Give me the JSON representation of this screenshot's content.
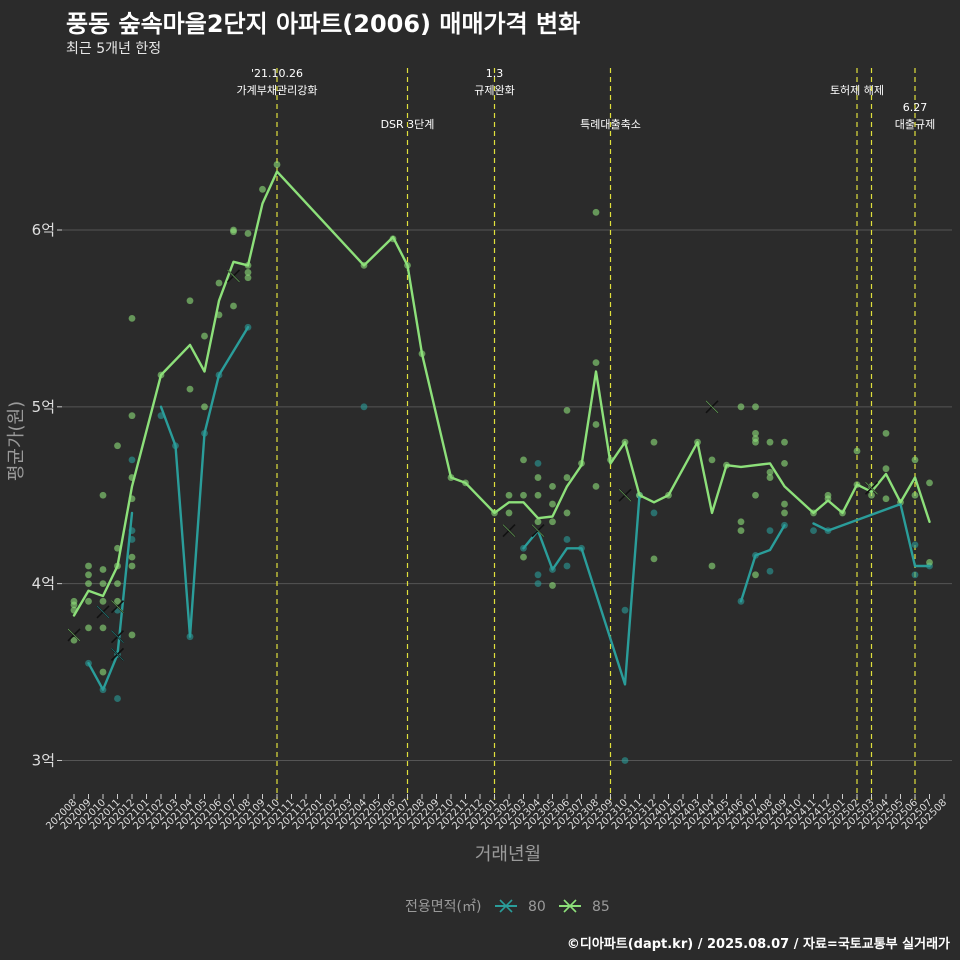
{
  "header": {
    "title": "풍동 숲속마을2단지 아파트(2006) 매매가격 변화",
    "subtitle": "최근 5개년 한정"
  },
  "caption": "©디아파트(dapt.kr) / 2025.08.07 / 자료=국토교통부 실거래가",
  "colors": {
    "background": "#2b2b2b",
    "grid": "#555555",
    "event_line": "#e0e03c",
    "series_80": "#2a9d9a",
    "series_85": "#8de07a"
  },
  "chart_data": {
    "type": "line",
    "xlabel": "거래년월",
    "ylabel": "평균가(원)",
    "ylim": [
      2.85,
      6.95
    ],
    "yticks": [
      {
        "value": 3,
        "label": "3억"
      },
      {
        "value": 4,
        "label": "4억"
      },
      {
        "value": 5,
        "label": "5억"
      },
      {
        "value": 6,
        "label": "6억"
      }
    ],
    "categories": [
      "202008",
      "202009",
      "202010",
      "202011",
      "202012",
      "202101",
      "202102",
      "202103",
      "202104",
      "202105",
      "202106",
      "202107",
      "202108",
      "202109",
      "202110",
      "202111",
      "202112",
      "202201",
      "202202",
      "202203",
      "202204",
      "202205",
      "202206",
      "202207",
      "202208",
      "202209",
      "202210",
      "202211",
      "202212",
      "202301",
      "202302",
      "202303",
      "202304",
      "202305",
      "202306",
      "202307",
      "202308",
      "202309",
      "202310",
      "202311",
      "202312",
      "202401",
      "202402",
      "202403",
      "202404",
      "202405",
      "202406",
      "202407",
      "202408",
      "202409",
      "202410",
      "202411",
      "202412",
      "202501",
      "202502",
      "202503",
      "202504",
      "202505",
      "202506",
      "202507",
      "202508"
    ],
    "legend_title": "전용면적(㎡)",
    "series": [
      {
        "name": "80",
        "segments": [
          [
            [
              "202009",
              3.55
            ],
            [
              "202010",
              3.4
            ],
            [
              "202011",
              3.6
            ],
            [
              "202012",
              4.4
            ]
          ],
          [
            [
              "202102",
              5.0
            ],
            [
              "202103",
              4.78
            ],
            [
              "202104",
              3.7
            ],
            [
              "202105",
              4.85
            ],
            [
              "202106",
              5.18
            ],
            [
              "202108",
              5.45
            ]
          ],
          [
            [
              "202303",
              4.2
            ],
            [
              "202304",
              4.3
            ],
            [
              "202305",
              4.08
            ],
            [
              "202306",
              4.2
            ],
            [
              "202307",
              4.2
            ],
            [
              "202310",
              3.43
            ],
            [
              "202311",
              4.5
            ]
          ],
          [
            [
              "202406",
              3.9
            ],
            [
              "202407",
              4.16
            ],
            [
              "202408",
              4.19
            ],
            [
              "202409",
              4.33
            ]
          ],
          [
            [
              "202411",
              4.34
            ],
            [
              "202412",
              4.3
            ],
            [
              "202505",
              4.45
            ],
            [
              "202506",
              4.1
            ],
            [
              "202507",
              4.1
            ]
          ]
        ],
        "points": [
          [
            "202009",
            3.55
          ],
          [
            "202010",
            3.4
          ],
          [
            "202011",
            3.35
          ],
          [
            "202011",
            3.6
          ],
          [
            "202011",
            3.85
          ],
          [
            "202012",
            4.3
          ],
          [
            "202012",
            4.25
          ],
          [
            "202012",
            4.7
          ],
          [
            "202102",
            4.95
          ],
          [
            "202103",
            4.78
          ],
          [
            "202104",
            3.7
          ],
          [
            "202105",
            4.85
          ],
          [
            "202106",
            5.18
          ],
          [
            "202108",
            5.45
          ],
          [
            "202204",
            5.0
          ],
          [
            "202303",
            4.2
          ],
          [
            "202304",
            4.68
          ],
          [
            "202304",
            4.05
          ],
          [
            "202304",
            4.0
          ],
          [
            "202305",
            4.08
          ],
          [
            "202306",
            4.25
          ],
          [
            "202306",
            4.1
          ],
          [
            "202307",
            4.2
          ],
          [
            "202310",
            3.85
          ],
          [
            "202310",
            3.0
          ],
          [
            "202311",
            4.5
          ],
          [
            "202312",
            4.4
          ],
          [
            "202406",
            3.9
          ],
          [
            "202407",
            4.16
          ],
          [
            "202408",
            4.07
          ],
          [
            "202408",
            4.3
          ],
          [
            "202409",
            4.33
          ],
          [
            "202411",
            4.3
          ],
          [
            "202412",
            4.3
          ],
          [
            "202506",
            4.05
          ],
          [
            "202506",
            4.22
          ],
          [
            "202507",
            4.1
          ]
        ],
        "markers_x": [
          [
            "202010",
            3.84
          ],
          [
            "202011",
            3.7
          ],
          [
            "202011",
            3.6
          ]
        ]
      },
      {
        "name": "85",
        "segments": [
          [
            [
              "202008",
              3.82
            ],
            [
              "202009",
              3.96
            ],
            [
              "202010",
              3.93
            ],
            [
              "202011",
              4.1
            ],
            [
              "202012",
              4.55
            ],
            [
              "202102",
              5.18
            ],
            [
              "202104",
              5.35
            ],
            [
              "202105",
              5.2
            ],
            [
              "202106",
              5.6
            ],
            [
              "202107",
              5.82
            ],
            [
              "202108",
              5.8
            ],
            [
              "202109",
              6.15
            ],
            [
              "202110",
              6.33
            ],
            [
              "202204",
              5.8
            ],
            [
              "202206",
              5.96
            ],
            [
              "202207",
              5.8
            ],
            [
              "202208",
              5.3
            ],
            [
              "202210",
              4.6
            ],
            [
              "202211",
              4.57
            ],
            [
              "202301",
              4.4
            ],
            [
              "202302",
              4.46
            ],
            [
              "202303",
              4.46
            ],
            [
              "202304",
              4.37
            ],
            [
              "202305",
              4.38
            ],
            [
              "202306",
              4.55
            ],
            [
              "202307",
              4.67
            ],
            [
              "202308",
              5.2
            ],
            [
              "202309",
              4.68
            ],
            [
              "202310",
              4.8
            ],
            [
              "202311",
              4.5
            ],
            [
              "202312",
              4.46
            ],
            [
              "202401",
              4.5
            ],
            [
              "202403",
              4.8
            ],
            [
              "202404",
              4.4
            ],
            [
              "202405",
              4.67
            ],
            [
              "202406",
              4.66
            ],
            [
              "202408",
              4.68
            ],
            [
              "202409",
              4.55
            ],
            [
              "202411",
              4.4
            ],
            [
              "202412",
              4.47
            ],
            [
              "202501",
              4.4
            ],
            [
              "202502",
              4.56
            ],
            [
              "202503",
              4.52
            ],
            [
              "202504",
              4.62
            ],
            [
              "202505",
              4.46
            ],
            [
              "202506",
              4.6
            ],
            [
              "202507",
              4.35
            ]
          ]
        ],
        "points": [
          [
            "202008",
            3.9
          ],
          [
            "202008",
            3.88
          ],
          [
            "202008",
            3.85
          ],
          [
            "202008",
            3.68
          ],
          [
            "202009",
            4.1
          ],
          [
            "202009",
            4.05
          ],
          [
            "202009",
            4.0
          ],
          [
            "202009",
            3.9
          ],
          [
            "202009",
            3.75
          ],
          [
            "202010",
            4.5
          ],
          [
            "202010",
            4.08
          ],
          [
            "202010",
            4.0
          ],
          [
            "202010",
            3.9
          ],
          [
            "202010",
            3.75
          ],
          [
            "202010",
            3.5
          ],
          [
            "202011",
            4.78
          ],
          [
            "202011",
            4.2
          ],
          [
            "202011",
            4.1
          ],
          [
            "202011",
            4.0
          ],
          [
            "202011",
            3.9
          ],
          [
            "202012",
            5.5
          ],
          [
            "202012",
            4.95
          ],
          [
            "202012",
            4.6
          ],
          [
            "202012",
            4.48
          ],
          [
            "202012",
            4.15
          ],
          [
            "202012",
            4.1
          ],
          [
            "202012",
            3.71
          ],
          [
            "202102",
            5.18
          ],
          [
            "202104",
            5.6
          ],
          [
            "202104",
            5.1
          ],
          [
            "202105",
            5.4
          ],
          [
            "202105",
            5.0
          ],
          [
            "202106",
            5.7
          ],
          [
            "202106",
            5.52
          ],
          [
            "202107",
            6.0
          ],
          [
            "202107",
            5.99
          ],
          [
            "202107",
            5.57
          ],
          [
            "202108",
            5.98
          ],
          [
            "202108",
            5.8
          ],
          [
            "202108",
            5.76
          ],
          [
            "202108",
            5.73
          ],
          [
            "202109",
            6.23
          ],
          [
            "202110",
            6.37
          ],
          [
            "202204",
            5.8
          ],
          [
            "202206",
            5.95
          ],
          [
            "202207",
            5.8
          ],
          [
            "202208",
            5.3
          ],
          [
            "202210",
            4.6
          ],
          [
            "202211",
            4.57
          ],
          [
            "202301",
            4.4
          ],
          [
            "202302",
            4.5
          ],
          [
            "202302",
            4.4
          ],
          [
            "202303",
            4.7
          ],
          [
            "202303",
            4.5
          ],
          [
            "202303",
            4.15
          ],
          [
            "202304",
            4.6
          ],
          [
            "202304",
            4.5
          ],
          [
            "202304",
            4.35
          ],
          [
            "202305",
            4.55
          ],
          [
            "202305",
            4.45
          ],
          [
            "202305",
            4.35
          ],
          [
            "202305",
            3.99
          ],
          [
            "202306",
            4.98
          ],
          [
            "202306",
            4.6
          ],
          [
            "202306",
            4.4
          ],
          [
            "202307",
            4.68
          ],
          [
            "202308",
            6.1
          ],
          [
            "202308",
            5.25
          ],
          [
            "202308",
            4.9
          ],
          [
            "202308",
            4.55
          ],
          [
            "202309",
            4.7
          ],
          [
            "202310",
            4.8
          ],
          [
            "202311",
            4.5
          ],
          [
            "202312",
            4.8
          ],
          [
            "202312",
            4.14
          ],
          [
            "202401",
            4.5
          ],
          [
            "202403",
            4.8
          ],
          [
            "202404",
            4.7
          ],
          [
            "202404",
            4.1
          ],
          [
            "202405",
            4.67
          ],
          [
            "202406",
            5.0
          ],
          [
            "202406",
            4.35
          ],
          [
            "202406",
            4.3
          ],
          [
            "202407",
            5.0
          ],
          [
            "202407",
            4.85
          ],
          [
            "202407",
            4.82
          ],
          [
            "202407",
            4.8
          ],
          [
            "202407",
            4.5
          ],
          [
            "202407",
            4.05
          ],
          [
            "202408",
            4.8
          ],
          [
            "202408",
            4.63
          ],
          [
            "202408",
            4.6
          ],
          [
            "202409",
            4.8
          ],
          [
            "202409",
            4.68
          ],
          [
            "202409",
            4.45
          ],
          [
            "202409",
            4.4
          ],
          [
            "202411",
            4.4
          ],
          [
            "202412",
            4.5
          ],
          [
            "202412",
            4.48
          ],
          [
            "202501",
            4.4
          ],
          [
            "202502",
            4.75
          ],
          [
            "202502",
            4.56
          ],
          [
            "202503",
            4.55
          ],
          [
            "202503",
            4.5
          ],
          [
            "202504",
            4.85
          ],
          [
            "202504",
            4.65
          ],
          [
            "202504",
            4.48
          ],
          [
            "202505",
            4.46
          ],
          [
            "202506",
            4.7
          ],
          [
            "202506",
            4.5
          ],
          [
            "202507",
            4.57
          ],
          [
            "202507",
            4.12
          ]
        ],
        "markers_x": [
          [
            "202008",
            3.71
          ],
          [
            "202011",
            3.87
          ],
          [
            "202107",
            5.74
          ],
          [
            "202302",
            4.3
          ],
          [
            "202304",
            4.3
          ],
          [
            "202310",
            4.5
          ],
          [
            "202404",
            5.0
          ],
          [
            "202503",
            4.54
          ]
        ]
      }
    ],
    "events": [
      {
        "x": "202110",
        "lines": [
          "'21.10.26",
          "가계부채관리강화"
        ],
        "level": 0
      },
      {
        "x": "202207",
        "lines": [
          "DSR 3단계"
        ],
        "level": 1
      },
      {
        "x": "202301",
        "lines": [
          "1.3",
          "규제완화"
        ],
        "level": 0
      },
      {
        "x": "202309",
        "lines": [
          "특례대출축소"
        ],
        "level": 1
      },
      {
        "x": "202502",
        "lines": [
          "토허제 해제"
        ],
        "level": 0
      },
      {
        "x": "202503",
        "lines": [],
        "level": 0
      },
      {
        "x": "202506",
        "lines": [
          "6.27",
          "대출규제"
        ],
        "level": 1
      }
    ]
  }
}
